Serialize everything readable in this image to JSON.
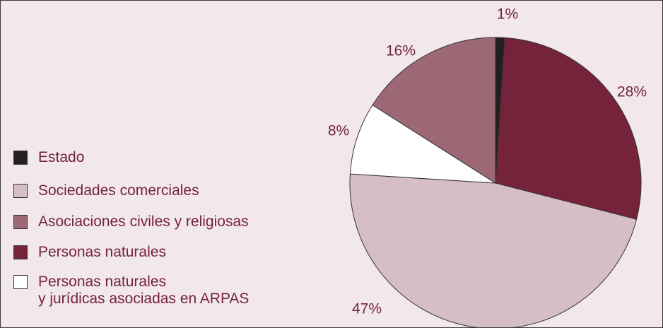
{
  "chart_data": {
    "type": "pie",
    "series": [
      {
        "name": "Estado",
        "color": "#231f20",
        "values": [
          1
        ]
      },
      {
        "name": "Sociedades comerciales",
        "color": "#d6bec6",
        "values": [
          47
        ]
      },
      {
        "name": "Asociaciones civiles y religiosas",
        "color": "#9d6875",
        "values": [
          16
        ]
      },
      {
        "name": "Personas naturales",
        "color": "#74233b",
        "values": [
          28
        ]
      },
      {
        "name": "Personas naturales\ny jurídicas asociadas en ARPAS",
        "color": "#ffffff",
        "values": [
          8
        ]
      }
    ],
    "value_labels": [
      "1%",
      "47%",
      "16%",
      "28%",
      "8%"
    ]
  }
}
